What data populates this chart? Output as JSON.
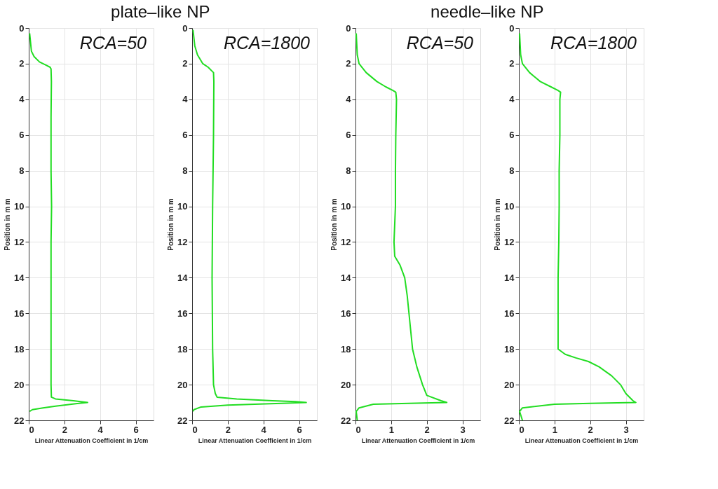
{
  "chart_data": [
    {
      "type": "line",
      "title": "plate–like NP",
      "annotations": [
        "RCA=50"
      ],
      "xlabel": "Linear Attenuation Coefficient in 1/cm",
      "ylabel": "Position in m m",
      "xlim": [
        0,
        7
      ],
      "xticks": [
        0,
        2,
        4,
        6
      ],
      "ylim": [
        22,
        0
      ],
      "yticks": [
        0,
        2,
        4,
        6,
        8,
        10,
        12,
        14,
        16,
        18,
        20,
        22
      ],
      "grid": true,
      "marker": "none",
      "line_style": "solid",
      "series": [
        {
          "color": "#22dd22",
          "x": [
            0.05,
            0.1,
            0.15,
            0.3,
            0.6,
            1.0,
            1.2,
            1.25,
            1.27,
            1.25,
            1.25,
            1.28,
            1.25,
            1.25,
            1.25,
            1.25,
            1.25,
            1.27,
            1.5,
            2.5,
            3.3,
            2.8,
            1.5,
            0.8,
            0.2,
            0.05
          ],
          "values": [
            0.3,
            0.8,
            1.3,
            1.6,
            1.9,
            2.1,
            2.2,
            2.3,
            3,
            5,
            8,
            10,
            12,
            14,
            16,
            18,
            20,
            20.7,
            20.8,
            20.9,
            21.0,
            21.05,
            21.2,
            21.3,
            21.4,
            21.5
          ]
        }
      ]
    },
    {
      "type": "line",
      "annotations": [
        "RCA=1800"
      ],
      "xlabel": "Linear Attenuation Coefficient in 1/cm",
      "ylabel": "Position in m m",
      "xlim": [
        0,
        7
      ],
      "xticks": [
        0,
        2,
        4,
        6
      ],
      "ylim": [
        22,
        0
      ],
      "yticks": [
        0,
        2,
        4,
        6,
        8,
        10,
        12,
        14,
        16,
        18,
        20,
        22
      ],
      "grid": true,
      "marker": "none",
      "line_style": "solid",
      "series": [
        {
          "color": "#22dd22",
          "x": [
            0.05,
            0.15,
            0.3,
            0.6,
            0.9,
            1.1,
            1.2,
            1.22,
            1.2,
            1.15,
            1.12,
            1.15,
            1.2,
            1.3,
            1.4,
            2.5,
            4.5,
            5.8,
            6.4,
            5,
            3.5,
            2,
            0.5,
            0.1,
            0.05
          ],
          "values": [
            0.1,
            1.0,
            1.5,
            2.0,
            2.2,
            2.4,
            2.5,
            3,
            6,
            10,
            14,
            18,
            20,
            20.5,
            20.7,
            20.8,
            20.9,
            20.95,
            21.0,
            21.05,
            21.1,
            21.15,
            21.25,
            21.4,
            21.5
          ]
        }
      ]
    },
    {
      "type": "line",
      "title": "needle–like NP",
      "annotations": [
        "RCA=50"
      ],
      "xlabel": "Linear Attenuation Coefficient in 1/cm",
      "ylabel": "Position in m m",
      "xlim": [
        0,
        3.5
      ],
      "xticks": [
        0,
        1,
        2,
        3
      ],
      "ylim": [
        22,
        0
      ],
      "yticks": [
        0,
        2,
        4,
        6,
        8,
        10,
        12,
        14,
        16,
        18,
        20,
        22
      ],
      "grid": true,
      "marker": "none",
      "line_style": "solid",
      "series": [
        {
          "color": "#22dd22",
          "x": [
            0.02,
            0.05,
            0.1,
            0.3,
            0.6,
            0.85,
            1.05,
            1.13,
            1.15,
            1.13,
            1.12,
            1.12,
            1.1,
            1.08,
            1.1,
            1.25,
            1.38,
            1.45,
            1.5,
            1.55,
            1.6,
            1.72,
            1.88,
            2.0,
            2.4,
            2.56,
            1.5,
            0.5,
            0.1,
            0.02,
            0.05
          ],
          "values": [
            0.3,
            1.5,
            2,
            2.5,
            3,
            3.3,
            3.5,
            3.6,
            4,
            6,
            8,
            10,
            11,
            12,
            12.8,
            13.3,
            14,
            15,
            16,
            17,
            18,
            19,
            20,
            20.6,
            20.9,
            21.0,
            21.05,
            21.1,
            21.3,
            21.5,
            22
          ]
        }
      ]
    },
    {
      "type": "line",
      "annotations": [
        "RCA=1800"
      ],
      "xlabel": "Linear Attenuation Coefficient in 1/cm",
      "ylabel": "Position in m m",
      "xlim": [
        0,
        3.5
      ],
      "xticks": [
        0,
        1,
        2,
        3
      ],
      "ylim": [
        22,
        0
      ],
      "yticks": [
        0,
        2,
        4,
        6,
        8,
        10,
        12,
        14,
        16,
        18,
        20,
        22
      ],
      "grid": true,
      "marker": "none",
      "line_style": "solid",
      "series": [
        {
          "color": "#22dd22",
          "x": [
            0.02,
            0.05,
            0.1,
            0.3,
            0.6,
            0.9,
            1.1,
            1.17,
            1.15,
            1.15,
            1.13,
            1.13,
            1.12,
            1.1,
            1.1,
            1.1,
            1.3,
            1.6,
            1.95,
            2.25,
            2.6,
            2.85,
            3.0,
            3.2,
            3.28,
            2.0,
            1.0,
            0.1,
            0.02,
            0.1
          ],
          "values": [
            0.3,
            1.5,
            2,
            2.5,
            3,
            3.3,
            3.5,
            3.6,
            4,
            6,
            8,
            10,
            12,
            14,
            16,
            18,
            18.3,
            18.5,
            18.7,
            19,
            19.5,
            20,
            20.5,
            20.9,
            21.0,
            21.05,
            21.1,
            21.3,
            21.5,
            22
          ]
        }
      ]
    }
  ]
}
